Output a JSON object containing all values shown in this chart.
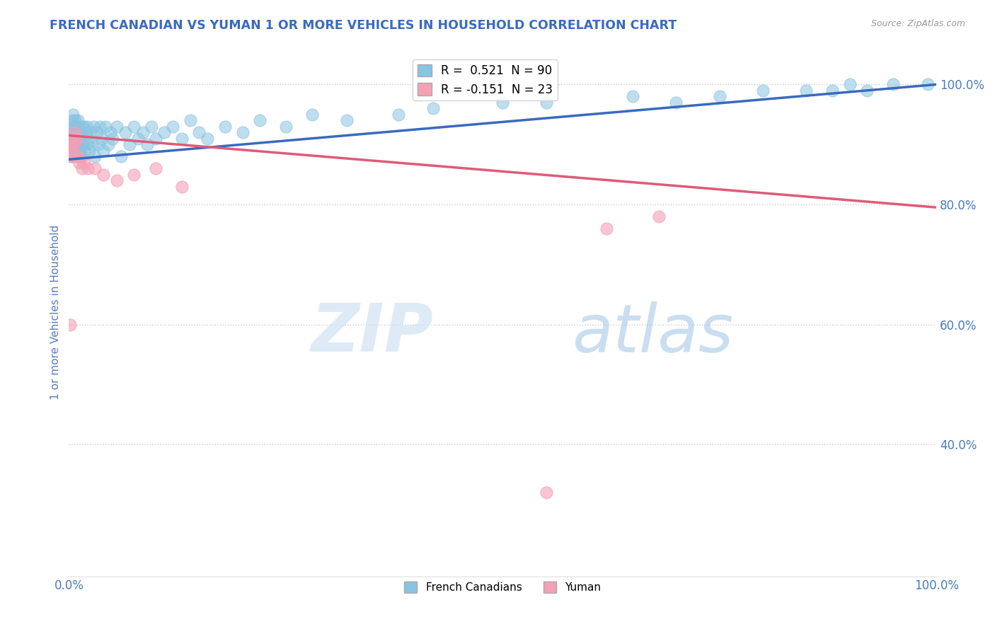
{
  "title": "FRENCH CANADIAN VS YUMAN 1 OR MORE VEHICLES IN HOUSEHOLD CORRELATION CHART",
  "source_text": "Source: ZipAtlas.com",
  "xlabel": "",
  "ylabel": "1 or more Vehicles in Household",
  "xlim": [
    0.0,
    1.0
  ],
  "ylim": [
    0.18,
    1.06
  ],
  "yticks": [
    0.4,
    0.6,
    0.8,
    1.0
  ],
  "ytick_labels": [
    "40.0%",
    "60.0%",
    "80.0%",
    "100.0%"
  ],
  "xticks": [
    0.0,
    0.25,
    0.5,
    0.75,
    1.0
  ],
  "xtick_labels": [
    "0.0%",
    "",
    "",
    "",
    "100.0%"
  ],
  "legend_label1": "French Canadians",
  "legend_label2": "Yuman",
  "r1": 0.521,
  "n1": 90,
  "r2": -0.151,
  "n2": 23,
  "blue_color": "#89c4e1",
  "pink_color": "#f4a0b5",
  "blue_line_color": "#3a6abf",
  "pink_line_color": "#e05a7a",
  "title_color": "#3a6abf",
  "axis_label_color": "#5a7abf",
  "tick_color": "#4a7abf",
  "watermark_zip": "ZIP",
  "watermark_atlas": "atlas",
  "blue_trend_x0": 0.0,
  "blue_trend_y0": 0.875,
  "blue_trend_x1": 1.0,
  "blue_trend_y1": 1.0,
  "pink_trend_x0": 0.0,
  "pink_trend_y0": 0.915,
  "pink_trend_x1": 1.0,
  "pink_trend_y1": 0.795,
  "french_x": [
    0.001,
    0.002,
    0.002,
    0.003,
    0.003,
    0.003,
    0.004,
    0.004,
    0.004,
    0.005,
    0.005,
    0.005,
    0.006,
    0.006,
    0.007,
    0.007,
    0.007,
    0.008,
    0.008,
    0.009,
    0.009,
    0.01,
    0.01,
    0.01,
    0.011,
    0.011,
    0.012,
    0.012,
    0.013,
    0.013,
    0.014,
    0.015,
    0.015,
    0.016,
    0.017,
    0.018,
    0.019,
    0.02,
    0.021,
    0.022,
    0.023,
    0.025,
    0.027,
    0.028,
    0.03,
    0.032,
    0.034,
    0.036,
    0.038,
    0.04,
    0.042,
    0.045,
    0.048,
    0.05,
    0.055,
    0.06,
    0.065,
    0.07,
    0.075,
    0.08,
    0.085,
    0.09,
    0.095,
    0.1,
    0.11,
    0.12,
    0.13,
    0.14,
    0.15,
    0.16,
    0.18,
    0.2,
    0.22,
    0.25,
    0.28,
    0.32,
    0.38,
    0.42,
    0.5,
    0.55,
    0.65,
    0.7,
    0.75,
    0.8,
    0.85,
    0.88,
    0.9,
    0.92,
    0.95,
    0.99
  ],
  "french_y": [
    0.89,
    0.9,
    0.92,
    0.88,
    0.91,
    0.93,
    0.89,
    0.92,
    0.94,
    0.9,
    0.93,
    0.95,
    0.88,
    0.92,
    0.89,
    0.91,
    0.94,
    0.9,
    0.93,
    0.88,
    0.92,
    0.89,
    0.91,
    0.94,
    0.9,
    0.93,
    0.88,
    0.92,
    0.89,
    0.91,
    0.93,
    0.88,
    0.92,
    0.9,
    0.93,
    0.89,
    0.92,
    0.9,
    0.93,
    0.91,
    0.89,
    0.92,
    0.9,
    0.93,
    0.88,
    0.92,
    0.9,
    0.93,
    0.91,
    0.89,
    0.93,
    0.9,
    0.92,
    0.91,
    0.93,
    0.88,
    0.92,
    0.9,
    0.93,
    0.91,
    0.92,
    0.9,
    0.93,
    0.91,
    0.92,
    0.93,
    0.91,
    0.94,
    0.92,
    0.91,
    0.93,
    0.92,
    0.94,
    0.93,
    0.95,
    0.94,
    0.95,
    0.96,
    0.97,
    0.97,
    0.98,
    0.97,
    0.98,
    0.99,
    0.99,
    0.99,
    1.0,
    0.99,
    1.0,
    1.0
  ],
  "yuman_x": [
    0.001,
    0.002,
    0.003,
    0.004,
    0.005,
    0.006,
    0.007,
    0.008,
    0.009,
    0.01,
    0.012,
    0.015,
    0.018,
    0.022,
    0.03,
    0.04,
    0.055,
    0.075,
    0.1,
    0.13,
    0.55,
    0.62,
    0.68
  ],
  "yuman_y": [
    0.6,
    0.88,
    0.9,
    0.89,
    0.91,
    0.9,
    0.92,
    0.88,
    0.91,
    0.88,
    0.87,
    0.86,
    0.87,
    0.86,
    0.86,
    0.85,
    0.84,
    0.85,
    0.86,
    0.83,
    0.32,
    0.76,
    0.78
  ]
}
